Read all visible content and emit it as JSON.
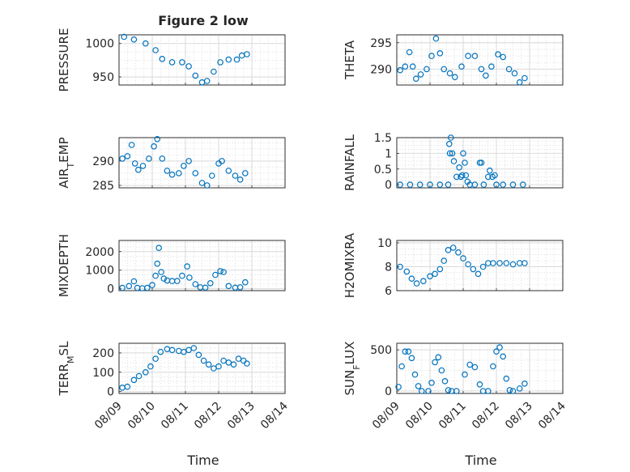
{
  "figure": {
    "title": "Figure 2 low",
    "xlabel": "Time",
    "x_tick_labels": [
      "08/09",
      "08/10",
      "08/11",
      "08/12",
      "08/13",
      "08/14"
    ]
  },
  "chart_data": [
    {
      "type": "scatter",
      "panel": "top-left",
      "ylabel": "PRESSURE",
      "title": "Figure 2 low",
      "xlim": [
        "08/09",
        "08/14"
      ],
      "ylim": [
        938,
        1013
      ],
      "yticks": [
        950,
        1000
      ],
      "ytick_labels": [
        "950",
        "1000"
      ],
      "grid": "on",
      "marker": "circle",
      "color": "#0072bd",
      "points": [
        [
          0.15,
          1010
        ],
        [
          0.45,
          1006
        ],
        [
          0.8,
          1000
        ],
        [
          1.1,
          990
        ],
        [
          1.3,
          977
        ],
        [
          1.6,
          972
        ],
        [
          1.9,
          972
        ],
        [
          2.1,
          966
        ],
        [
          2.3,
          952
        ],
        [
          2.5,
          942
        ],
        [
          2.65,
          944
        ],
        [
          2.85,
          958
        ],
        [
          3.05,
          972
        ],
        [
          3.3,
          976
        ],
        [
          3.55,
          976
        ],
        [
          3.7,
          982
        ],
        [
          3.85,
          984
        ]
      ]
    },
    {
      "type": "scatter",
      "panel": "top-right",
      "ylabel": "THETA",
      "xlim": [
        "08/09",
        "08/14"
      ],
      "ylim": [
        287,
        296.5
      ],
      "yticks": [
        290,
        295
      ],
      "ytick_labels": [
        "290",
        "295"
      ],
      "grid": "on",
      "marker": "circle",
      "color": "#0072bd",
      "points": [
        [
          0.1,
          289.8
        ],
        [
          0.25,
          290.5
        ],
        [
          0.38,
          293.2
        ],
        [
          0.48,
          290.5
        ],
        [
          0.58,
          288.2
        ],
        [
          0.72,
          289
        ],
        [
          0.9,
          290
        ],
        [
          1.05,
          292.5
        ],
        [
          1.18,
          295.8
        ],
        [
          1.3,
          293
        ],
        [
          1.42,
          290
        ],
        [
          1.6,
          289.2
        ],
        [
          1.75,
          288.5
        ],
        [
          1.95,
          290.5
        ],
        [
          2.15,
          292.5
        ],
        [
          2.35,
          292.5
        ],
        [
          2.55,
          290
        ],
        [
          2.68,
          288.8
        ],
        [
          2.85,
          290.5
        ],
        [
          3.05,
          292.8
        ],
        [
          3.2,
          292.3
        ],
        [
          3.38,
          290
        ],
        [
          3.55,
          289.2
        ],
        [
          3.7,
          287.5
        ],
        [
          3.85,
          288.3
        ]
      ]
    },
    {
      "type": "scatter",
      "panel": "row2-left",
      "ylabel": "AIR_TEMP",
      "xlim": [
        "08/09",
        "08/14"
      ],
      "ylim": [
        284.5,
        294.8
      ],
      "yticks": [
        285,
        290
      ],
      "ytick_labels": [
        "285",
        "290"
      ],
      "grid": "on",
      "marker": "circle",
      "color": "#0072bd",
      "points": [
        [
          0.1,
          290.5
        ],
        [
          0.25,
          291
        ],
        [
          0.38,
          293.3
        ],
        [
          0.48,
          289.5
        ],
        [
          0.58,
          288.2
        ],
        [
          0.72,
          289
        ],
        [
          0.9,
          290.5
        ],
        [
          1.05,
          293
        ],
        [
          1.15,
          294.5
        ],
        [
          1.3,
          290.5
        ],
        [
          1.45,
          288
        ],
        [
          1.6,
          287.2
        ],
        [
          1.8,
          287.5
        ],
        [
          1.95,
          289
        ],
        [
          2.1,
          290
        ],
        [
          2.3,
          287.5
        ],
        [
          2.5,
          285.5
        ],
        [
          2.65,
          285
        ],
        [
          2.8,
          287
        ],
        [
          3.0,
          289.5
        ],
        [
          3.1,
          290
        ],
        [
          3.3,
          288
        ],
        [
          3.5,
          287
        ],
        [
          3.65,
          286.2
        ],
        [
          3.8,
          287.5
        ]
      ]
    },
    {
      "type": "scatter",
      "panel": "row2-right",
      "ylabel": "RAINFALL",
      "xlim": [
        "08/09",
        "08/14"
      ],
      "ylim": [
        -0.1,
        1.5
      ],
      "yticks": [
        0,
        0.5,
        1,
        1.5
      ],
      "ytick_labels": [
        "0",
        "0.5",
        "1",
        "1.5"
      ],
      "grid": "on",
      "marker": "circle",
      "color": "#0072bd",
      "points": [
        [
          0.1,
          0
        ],
        [
          0.4,
          0
        ],
        [
          0.7,
          0
        ],
        [
          1.0,
          0
        ],
        [
          1.3,
          0
        ],
        [
          1.55,
          0
        ],
        [
          1.58,
          1.3
        ],
        [
          1.6,
          1.0
        ],
        [
          1.63,
          1.5
        ],
        [
          1.67,
          1.0
        ],
        [
          1.72,
          0.75
        ],
        [
          1.8,
          0.25
        ],
        [
          1.88,
          0.55
        ],
        [
          1.93,
          0.25
        ],
        [
          1.97,
          0.3
        ],
        [
          2.0,
          1.0
        ],
        [
          2.05,
          0.7
        ],
        [
          2.08,
          0.3
        ],
        [
          2.13,
          0.1
        ],
        [
          2.2,
          0
        ],
        [
          2.35,
          0
        ],
        [
          2.5,
          0.7
        ],
        [
          2.55,
          0.7
        ],
        [
          2.62,
          0
        ],
        [
          2.75,
          0.25
        ],
        [
          2.8,
          0.45
        ],
        [
          2.88,
          0.25
        ],
        [
          2.95,
          0.3
        ],
        [
          3.0,
          0
        ],
        [
          3.2,
          0
        ],
        [
          3.5,
          0
        ],
        [
          3.8,
          0
        ]
      ]
    },
    {
      "type": "scatter",
      "panel": "row3-left",
      "ylabel": "MIXDEPTH",
      "xlim": [
        "08/09",
        "08/14"
      ],
      "ylim": [
        -100,
        2600
      ],
      "yticks": [
        0,
        1000,
        2000
      ],
      "ytick_labels": [
        "0",
        "1000",
        "2000"
      ],
      "grid": "on",
      "marker": "circle",
      "color": "#0072bd",
      "points": [
        [
          0.1,
          50
        ],
        [
          0.3,
          150
        ],
        [
          0.45,
          400
        ],
        [
          0.55,
          50
        ],
        [
          0.7,
          30
        ],
        [
          0.85,
          50
        ],
        [
          1.0,
          200
        ],
        [
          1.1,
          700
        ],
        [
          1.15,
          1350
        ],
        [
          1.2,
          2200
        ],
        [
          1.27,
          900
        ],
        [
          1.35,
          550
        ],
        [
          1.45,
          450
        ],
        [
          1.6,
          420
        ],
        [
          1.75,
          420
        ],
        [
          1.9,
          700
        ],
        [
          2.05,
          1200
        ],
        [
          2.12,
          600
        ],
        [
          2.3,
          250
        ],
        [
          2.45,
          80
        ],
        [
          2.6,
          60
        ],
        [
          2.75,
          300
        ],
        [
          2.9,
          750
        ],
        [
          3.05,
          950
        ],
        [
          3.15,
          900
        ],
        [
          3.3,
          150
        ],
        [
          3.5,
          60
        ],
        [
          3.65,
          80
        ],
        [
          3.8,
          350
        ]
      ]
    },
    {
      "type": "scatter",
      "panel": "row3-right",
      "ylabel": "H2OMIXRA",
      "xlim": [
        "08/09",
        "08/14"
      ],
      "ylim": [
        6,
        10.2
      ],
      "yticks": [
        6,
        8,
        10
      ],
      "ytick_labels": [
        "6",
        "8",
        "10"
      ],
      "grid": "on",
      "marker": "circle",
      "color": "#0072bd",
      "points": [
        [
          0.1,
          8
        ],
        [
          0.3,
          7.6
        ],
        [
          0.45,
          7.0
        ],
        [
          0.6,
          6.6
        ],
        [
          0.8,
          6.8
        ],
        [
          1.0,
          7.2
        ],
        [
          1.15,
          7.4
        ],
        [
          1.3,
          7.8
        ],
        [
          1.42,
          8.5
        ],
        [
          1.55,
          9.4
        ],
        [
          1.7,
          9.6
        ],
        [
          1.85,
          9.2
        ],
        [
          2.0,
          8.7
        ],
        [
          2.15,
          8.2
        ],
        [
          2.3,
          7.8
        ],
        [
          2.45,
          7.4
        ],
        [
          2.6,
          8.0
        ],
        [
          2.75,
          8.3
        ],
        [
          2.9,
          8.3
        ],
        [
          3.1,
          8.3
        ],
        [
          3.3,
          8.3
        ],
        [
          3.5,
          8.2
        ],
        [
          3.7,
          8.3
        ],
        [
          3.85,
          8.3
        ]
      ]
    },
    {
      "type": "scatter",
      "panel": "bottom-left",
      "ylabel": "TERR_MSL",
      "xlim": [
        "08/09",
        "08/14"
      ],
      "ylim": [
        -10,
        250
      ],
      "yticks": [
        0,
        100,
        200
      ],
      "ytick_labels": [
        "0",
        "100",
        "200"
      ],
      "grid": "on",
      "marker": "circle",
      "color": "#0072bd",
      "points": [
        [
          0.1,
          20
        ],
        [
          0.25,
          25
        ],
        [
          0.45,
          60
        ],
        [
          0.6,
          80
        ],
        [
          0.8,
          100
        ],
        [
          0.95,
          130
        ],
        [
          1.1,
          170
        ],
        [
          1.25,
          205
        ],
        [
          1.45,
          220
        ],
        [
          1.6,
          215
        ],
        [
          1.8,
          210
        ],
        [
          1.95,
          205
        ],
        [
          2.1,
          215
        ],
        [
          2.25,
          225
        ],
        [
          2.4,
          190
        ],
        [
          2.55,
          160
        ],
        [
          2.7,
          140
        ],
        [
          2.85,
          120
        ],
        [
          3.0,
          130
        ],
        [
          3.15,
          160
        ],
        [
          3.3,
          150
        ],
        [
          3.45,
          140
        ],
        [
          3.6,
          170
        ],
        [
          3.75,
          160
        ],
        [
          3.85,
          145
        ]
      ]
    },
    {
      "type": "scatter",
      "panel": "bottom-right",
      "ylabel": "SUN_FLUX",
      "xlim": [
        "08/09",
        "08/14"
      ],
      "ylim": [
        -30,
        580
      ],
      "yticks": [
        0,
        500
      ],
      "ytick_labels": [
        "0",
        "500"
      ],
      "grid": "on",
      "marker": "circle",
      "color": "#0072bd",
      "points": [
        [
          0.05,
          50
        ],
        [
          0.15,
          300
        ],
        [
          0.25,
          480
        ],
        [
          0.35,
          480
        ],
        [
          0.45,
          400
        ],
        [
          0.55,
          200
        ],
        [
          0.65,
          60
        ],
        [
          0.75,
          0
        ],
        [
          0.95,
          0
        ],
        [
          1.05,
          100
        ],
        [
          1.15,
          350
        ],
        [
          1.25,
          410
        ],
        [
          1.35,
          250
        ],
        [
          1.45,
          120
        ],
        [
          1.55,
          10
        ],
        [
          1.65,
          0
        ],
        [
          1.8,
          0
        ],
        [
          2.05,
          200
        ],
        [
          2.2,
          320
        ],
        [
          2.35,
          290
        ],
        [
          2.5,
          80
        ],
        [
          2.6,
          0
        ],
        [
          2.75,
          0
        ],
        [
          2.9,
          300
        ],
        [
          3.0,
          480
        ],
        [
          3.1,
          530
        ],
        [
          3.2,
          420
        ],
        [
          3.3,
          150
        ],
        [
          3.4,
          10
        ],
        [
          3.5,
          0
        ],
        [
          3.7,
          30
        ],
        [
          3.85,
          90
        ]
      ]
    }
  ]
}
